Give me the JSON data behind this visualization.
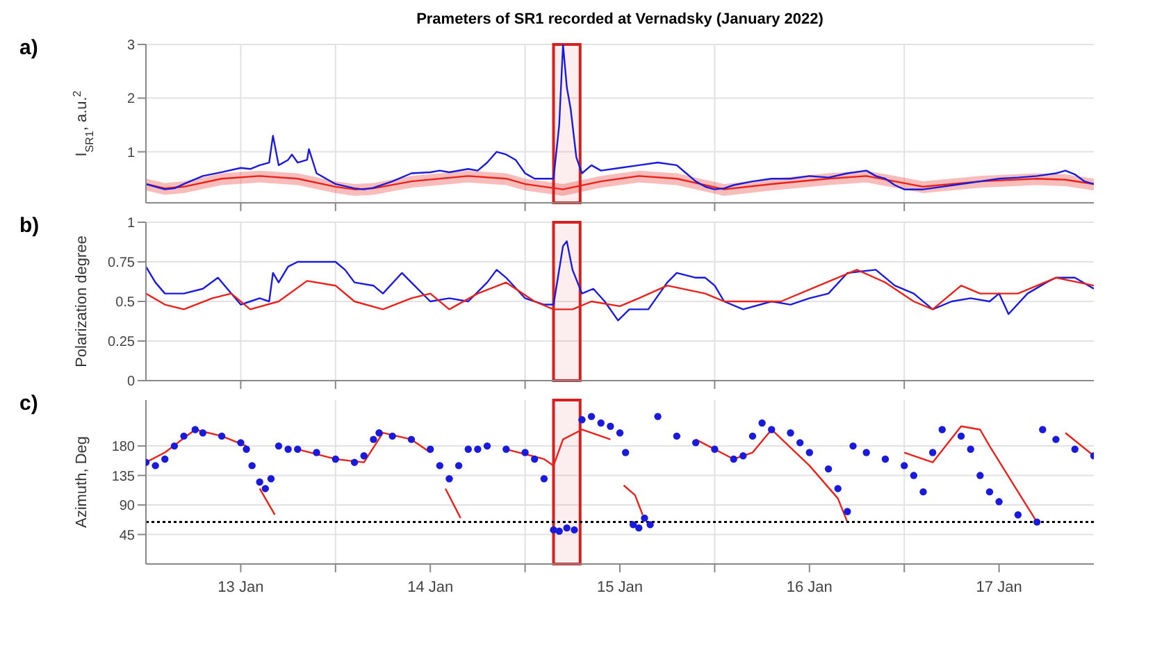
{
  "chart_data": [
    {
      "type": "line",
      "title": "Prameters of SR1 recorded at Vernadsky (January 2022)",
      "ylabel": "I$_{SR1}$, a.u.$^{2}$",
      "annotations": [
        "a)"
      ],
      "xlim": [
        "2022-01-13T00:00",
        "2022-01-18T00:00"
      ],
      "ylim": [
        0.05,
        3
      ],
      "yticks": [
        1,
        2,
        3
      ],
      "xticks": [
        {
          "value": "2022-01-13T12:00",
          "label": null
        },
        {
          "value": "2022-01-14T00:00",
          "label": null
        },
        {
          "value": "2022-01-15T00:00",
          "label": null
        },
        {
          "value": "2022-01-16T00:00",
          "label": null
        },
        {
          "value": "2022-01-17T00:00",
          "label": null
        }
      ],
      "tick_labels": "y",
      "grid": true,
      "marker": "none",
      "bands": [
        {
          "axis": "x",
          "from": "2022-01-15T03:36",
          "to": "2022-01-15T06:58",
          "color": "#d62020"
        }
      ],
      "series": [
        {
          "color": "#e8221b",
          "lower": [
            0.28,
            0.2,
            0.23,
            0.38,
            0.43,
            0.38,
            0.23,
            0.18,
            0.2,
            0.33,
            0.43,
            0.38,
            0.28,
            0.23,
            0.18,
            0.33,
            0.43,
            0.38,
            0.3,
            0.18,
            0.28,
            0.38,
            0.43,
            0.33,
            0.23,
            0.33,
            0.38,
            0.36,
            0.28
          ],
          "upper": [
            0.5,
            0.42,
            0.45,
            0.6,
            0.65,
            0.6,
            0.45,
            0.4,
            0.42,
            0.55,
            0.65,
            0.6,
            0.5,
            0.45,
            0.4,
            0.55,
            0.65,
            0.6,
            0.52,
            0.4,
            0.5,
            0.6,
            0.65,
            0.55,
            0.45,
            0.55,
            0.6,
            0.58,
            0.5
          ],
          "x": [
            "2022-01-13T00:00",
            "2022-01-13T02:24",
            "2022-01-13T04:48",
            "2022-01-13T09:36",
            "2022-01-13T14:24",
            "2022-01-13T19:12",
            "2022-01-14T00:00",
            "2022-01-14T02:24",
            "2022-01-14T04:48",
            "2022-01-14T09:36",
            "2022-01-14T16:48",
            "2022-01-14T21:36",
            "2022-01-15T00:00",
            "2022-01-15T02:24",
            "2022-01-15T04:48",
            "2022-01-15T09:36",
            "2022-01-15T14:24",
            "2022-01-15T19:12",
            "2022-01-15T21:36",
            "2022-01-16T01:12",
            "2022-01-16T07:12",
            "2022-01-16T14:24",
            "2022-01-16T19:12",
            "2022-01-16T22:48",
            "2022-01-17T02:24",
            "2022-01-17T09:36",
            "2022-01-17T16:48",
            "2022-01-17T20:24",
            "2022-01-18T00:00"
          ],
          "values": [
            0.4,
            0.32,
            0.35,
            0.5,
            0.55,
            0.5,
            0.35,
            0.3,
            0.32,
            0.45,
            0.55,
            0.5,
            0.4,
            0.35,
            0.3,
            0.45,
            0.55,
            0.5,
            0.42,
            0.3,
            0.4,
            0.5,
            0.55,
            0.45,
            0.35,
            0.45,
            0.5,
            0.48,
            0.4
          ]
        },
        {
          "color": "#1a1adb",
          "x": [
            "2022-01-13T00:00",
            "2022-01-13T01:12",
            "2022-01-13T02:24",
            "2022-01-13T03:36",
            "2022-01-13T04:48",
            "2022-01-13T07:12",
            "2022-01-13T09:36",
            "2022-01-13T12:00",
            "2022-01-13T13:12",
            "2022-01-13T14:24",
            "2022-01-13T15:36",
            "2022-01-13T16:05",
            "2022-01-13T16:48",
            "2022-01-13T18:00",
            "2022-01-13T18:29",
            "2022-01-13T19:12",
            "2022-01-13T20:24",
            "2022-01-13T20:38",
            "2022-01-13T21:36",
            "2022-01-13T22:48",
            "2022-01-14T00:00",
            "2022-01-14T02:24",
            "2022-01-14T03:36",
            "2022-01-14T04:48",
            "2022-01-14T07:12",
            "2022-01-14T09:36",
            "2022-01-14T12:00",
            "2022-01-14T13:12",
            "2022-01-14T14:24",
            "2022-01-14T16:48",
            "2022-01-14T18:00",
            "2022-01-14T19:12",
            "2022-01-14T20:24",
            "2022-01-14T21:36",
            "2022-01-14T22:48",
            "2022-01-15T00:00",
            "2022-01-15T01:12",
            "2022-01-15T02:24",
            "2022-01-15T03:36",
            "2022-01-15T04:19",
            "2022-01-15T04:48",
            "2022-01-15T05:17",
            "2022-01-15T05:46",
            "2022-01-15T06:29",
            "2022-01-15T07:12",
            "2022-01-15T08:24",
            "2022-01-15T09:36",
            "2022-01-15T12:00",
            "2022-01-15T14:24",
            "2022-01-15T16:48",
            "2022-01-15T19:12",
            "2022-01-15T20:24",
            "2022-01-15T21:36",
            "2022-01-15T22:48",
            "2022-01-16T00:00",
            "2022-01-16T01:12",
            "2022-01-16T02:24",
            "2022-01-16T04:48",
            "2022-01-16T07:12",
            "2022-01-16T09:36",
            "2022-01-16T12:00",
            "2022-01-16T14:24",
            "2022-01-16T16:48",
            "2022-01-16T19:12",
            "2022-01-16T20:24",
            "2022-01-16T21:36",
            "2022-01-16T22:48",
            "2022-01-17T00:00",
            "2022-01-17T02:24",
            "2022-01-17T04:48",
            "2022-01-17T07:12",
            "2022-01-17T09:36",
            "2022-01-17T12:00",
            "2022-01-17T14:24",
            "2022-01-17T16:48",
            "2022-01-17T19:12",
            "2022-01-17T20:24",
            "2022-01-17T21:36",
            "2022-01-17T22:48",
            "2022-01-18T00:00"
          ],
          "values": [
            0.4,
            0.35,
            0.3,
            0.32,
            0.4,
            0.55,
            0.62,
            0.7,
            0.68,
            0.75,
            0.8,
            1.3,
            0.75,
            0.85,
            0.95,
            0.8,
            0.85,
            1.05,
            0.6,
            0.5,
            0.4,
            0.32,
            0.3,
            0.33,
            0.45,
            0.6,
            0.62,
            0.65,
            0.62,
            0.68,
            0.65,
            0.8,
            1.0,
            0.95,
            0.85,
            0.6,
            0.5,
            0.5,
            0.5,
            1.5,
            3.0,
            2.2,
            1.8,
            0.9,
            0.6,
            0.75,
            0.65,
            0.7,
            0.75,
            0.8,
            0.75,
            0.6,
            0.45,
            0.35,
            0.3,
            0.32,
            0.38,
            0.45,
            0.5,
            0.5,
            0.55,
            0.52,
            0.6,
            0.65,
            0.55,
            0.5,
            0.38,
            0.3,
            0.3,
            0.35,
            0.4,
            0.45,
            0.5,
            0.52,
            0.55,
            0.6,
            0.65,
            0.58,
            0.45,
            0.4
          ]
        }
      ]
    },
    {
      "type": "line",
      "ylabel": "Polarization degree",
      "annotations": [
        "b)"
      ],
      "xlim": [
        "2022-01-13T00:00",
        "2022-01-18T00:00"
      ],
      "ylim": [
        0,
        1
      ],
      "yticks": [
        0,
        0.25,
        0.5,
        0.75,
        1
      ],
      "xticks": [
        {
          "value": "2022-01-13T12:00",
          "label": null
        },
        {
          "value": "2022-01-14T00:00",
          "label": null
        },
        {
          "value": "2022-01-15T00:00",
          "label": null
        },
        {
          "value": "2022-01-16T00:00",
          "label": null
        },
        {
          "value": "2022-01-17T00:00",
          "label": null
        }
      ],
      "tick_labels": "y",
      "grid": true,
      "marker": "none",
      "bands": [
        {
          "axis": "x",
          "from": "2022-01-15T03:36",
          "to": "2022-01-15T06:58",
          "color": "#d62020"
        }
      ],
      "series": [
        {
          "color": "#1a1adb",
          "x": [
            "2022-01-13T00:00",
            "2022-01-13T01:12",
            "2022-01-13T02:24",
            "2022-01-13T04:48",
            "2022-01-13T07:12",
            "2022-01-13T09:07",
            "2022-01-13T10:48",
            "2022-01-13T12:00",
            "2022-01-13T13:12",
            "2022-01-13T14:24",
            "2022-01-13T15:36",
            "2022-01-13T16:05",
            "2022-01-13T16:48",
            "2022-01-13T18:00",
            "2022-01-13T19:12",
            "2022-01-13T21:36",
            "2022-01-14T00:00",
            "2022-01-14T01:12",
            "2022-01-14T02:24",
            "2022-01-14T04:48",
            "2022-01-14T06:00",
            "2022-01-14T08:24",
            "2022-01-14T09:36",
            "2022-01-14T12:00",
            "2022-01-14T14:24",
            "2022-01-14T16:48",
            "2022-01-14T19:12",
            "2022-01-14T20:24",
            "2022-01-14T21:36",
            "2022-01-15T00:00",
            "2022-01-15T02:24",
            "2022-01-15T03:36",
            "2022-01-15T04:48",
            "2022-01-15T05:17",
            "2022-01-15T06:00",
            "2022-01-15T07:12",
            "2022-01-15T08:38",
            "2022-01-15T10:05",
            "2022-01-15T11:46",
            "2022-01-15T13:12",
            "2022-01-15T15:36",
            "2022-01-15T18:00",
            "2022-01-15T19:12",
            "2022-01-15T21:36",
            "2022-01-15T22:48",
            "2022-01-16T00:00",
            "2022-01-16T01:12",
            "2022-01-16T03:36",
            "2022-01-16T07:12",
            "2022-01-16T09:36",
            "2022-01-16T12:00",
            "2022-01-16T14:24",
            "2022-01-16T16:48",
            "2022-01-16T20:24",
            "2022-01-16T22:48",
            "2022-01-17T01:12",
            "2022-01-17T03:36",
            "2022-01-17T06:00",
            "2022-01-17T08:24",
            "2022-01-17T10:48",
            "2022-01-17T12:00",
            "2022-01-17T13:12",
            "2022-01-17T15:36",
            "2022-01-17T18:00",
            "2022-01-17T19:12",
            "2022-01-17T21:36",
            "2022-01-18T00:00"
          ],
          "values": [
            0.72,
            0.62,
            0.55,
            0.55,
            0.58,
            0.65,
            0.55,
            0.48,
            0.5,
            0.52,
            0.5,
            0.68,
            0.62,
            0.72,
            0.75,
            0.75,
            0.75,
            0.7,
            0.62,
            0.6,
            0.55,
            0.68,
            0.62,
            0.5,
            0.52,
            0.5,
            0.62,
            0.7,
            0.65,
            0.52,
            0.48,
            0.48,
            0.85,
            0.88,
            0.7,
            0.55,
            0.58,
            0.5,
            0.38,
            0.45,
            0.45,
            0.62,
            0.68,
            0.65,
            0.65,
            0.6,
            0.5,
            0.45,
            0.5,
            0.48,
            0.52,
            0.55,
            0.68,
            0.7,
            0.6,
            0.55,
            0.45,
            0.5,
            0.52,
            0.5,
            0.55,
            0.42,
            0.55,
            0.62,
            0.65,
            0.65,
            0.58
          ]
        },
        {
          "color": "#e8221b",
          "x": [
            "2022-01-13T00:00",
            "2022-01-13T02:24",
            "2022-01-13T04:48",
            "2022-01-13T08:24",
            "2022-01-13T10:48",
            "2022-01-13T13:12",
            "2022-01-13T16:48",
            "2022-01-13T20:24",
            "2022-01-14T00:00",
            "2022-01-14T02:24",
            "2022-01-14T06:00",
            "2022-01-14T09:36",
            "2022-01-14T12:00",
            "2022-01-14T14:24",
            "2022-01-14T18:00",
            "2022-01-14T21:36",
            "2022-01-15T01:12",
            "2022-01-15T03:36",
            "2022-01-15T06:00",
            "2022-01-15T08:24",
            "2022-01-15T12:00",
            "2022-01-15T14:24",
            "2022-01-15T18:00",
            "2022-01-15T22:48",
            "2022-01-16T01:12",
            "2022-01-16T08:24",
            "2022-01-16T13:12",
            "2022-01-16T18:00",
            "2022-01-16T21:36",
            "2022-01-17T01:12",
            "2022-01-17T03:36",
            "2022-01-17T07:12",
            "2022-01-17T09:36",
            "2022-01-17T14:24",
            "2022-01-17T19:12",
            "2022-01-18T00:00"
          ],
          "values": [
            0.55,
            0.48,
            0.45,
            0.52,
            0.55,
            0.45,
            0.5,
            0.63,
            0.6,
            0.5,
            0.45,
            0.52,
            0.55,
            0.45,
            0.55,
            0.62,
            0.5,
            0.45,
            0.45,
            0.5,
            0.47,
            0.52,
            0.6,
            0.55,
            0.5,
            0.5,
            0.6,
            0.7,
            0.62,
            0.5,
            0.45,
            0.6,
            0.55,
            0.55,
            0.65,
            0.6
          ]
        }
      ]
    },
    {
      "type": "scatter",
      "ylabel": "Azimuth, Deg",
      "annotations": [
        "c)"
      ],
      "xlim": [
        "2022-01-13T00:00",
        "2022-01-18T00:00"
      ],
      "ylim": [
        0,
        250
      ],
      "yticks": [
        45,
        90,
        135,
        180
      ],
      "xticks": [
        {
          "value": "2022-01-13T12:00",
          "label": "13 Jan"
        },
        {
          "value": "2022-01-14T00:00",
          "label": null
        },
        {
          "value": "2022-01-14T12:00",
          "label": "14 Jan"
        },
        {
          "value": "2022-01-15T00:00",
          "label": null
        },
        {
          "value": "2022-01-15T12:00",
          "label": "15 Jan"
        },
        {
          "value": "2022-01-16T00:00",
          "label": null
        },
        {
          "value": "2022-01-16T12:00",
          "label": "16 Jan"
        },
        {
          "value": "2022-01-17T00:00",
          "label": null
        },
        {
          "value": "2022-01-17T12:00",
          "label": "17 Jan"
        }
      ],
      "grid": true,
      "bands": [
        {
          "axis": "x",
          "from": "2022-01-15T03:36",
          "to": "2022-01-15T06:58",
          "color": "#d62020"
        }
      ],
      "ref_lines": [
        {
          "axis": "y",
          "value": 64,
          "color": "#000000",
          "line_style": "dotted"
        }
      ],
      "series": [
        {
          "marker": "circle",
          "color": "#1a1adb",
          "x": [
            "2022-01-13T00:00",
            "2022-01-13T01:12",
            "2022-01-13T02:24",
            "2022-01-13T03:36",
            "2022-01-13T04:48",
            "2022-01-13T06:14",
            "2022-01-13T07:12",
            "2022-01-13T09:36",
            "2022-01-13T12:00",
            "2022-01-13T12:43",
            "2022-01-13T13:26",
            "2022-01-13T14:24",
            "2022-01-13T15:07",
            "2022-01-13T15:50",
            "2022-01-13T16:48",
            "2022-01-13T18:00",
            "2022-01-13T19:12",
            "2022-01-13T21:36",
            "2022-01-14T00:00",
            "2022-01-14T02:24",
            "2022-01-14T03:36",
            "2022-01-14T04:48",
            "2022-01-14T05:31",
            "2022-01-14T07:12",
            "2022-01-14T09:36",
            "2022-01-14T12:00",
            "2022-01-14T13:12",
            "2022-01-14T14:24",
            "2022-01-14T15:36",
            "2022-01-14T16:48",
            "2022-01-14T18:00",
            "2022-01-14T19:12",
            "2022-01-14T21:36",
            "2022-01-15T00:00",
            "2022-01-15T01:12",
            "2022-01-15T02:24",
            "2022-01-15T03:36",
            "2022-01-15T04:19",
            "2022-01-15T05:17",
            "2022-01-15T06:14",
            "2022-01-15T07:12",
            "2022-01-15T08:24",
            "2022-01-15T09:36",
            "2022-01-15T10:48",
            "2022-01-15T12:00",
            "2022-01-15T12:43",
            "2022-01-15T13:41",
            "2022-01-15T14:24",
            "2022-01-15T15:07",
            "2022-01-15T15:50",
            "2022-01-15T16:48",
            "2022-01-15T19:12",
            "2022-01-15T21:36",
            "2022-01-16T00:00",
            "2022-01-16T02:24",
            "2022-01-16T03:36",
            "2022-01-16T04:48",
            "2022-01-16T06:00",
            "2022-01-16T07:12",
            "2022-01-16T09:36",
            "2022-01-16T10:48",
            "2022-01-16T12:00",
            "2022-01-16T14:24",
            "2022-01-16T15:36",
            "2022-01-16T16:48",
            "2022-01-16T17:31",
            "2022-01-16T19:12",
            "2022-01-16T21:36",
            "2022-01-17T00:00",
            "2022-01-17T01:12",
            "2022-01-17T02:24",
            "2022-01-17T03:36",
            "2022-01-17T04:48",
            "2022-01-17T07:12",
            "2022-01-17T08:24",
            "2022-01-17T09:36",
            "2022-01-17T10:48",
            "2022-01-17T12:00",
            "2022-01-17T14:24",
            "2022-01-17T16:48",
            "2022-01-17T17:31",
            "2022-01-17T19:12",
            "2022-01-17T21:36",
            "2022-01-18T00:00"
          ],
          "values": [
            155,
            150,
            160,
            180,
            195,
            205,
            200,
            195,
            185,
            175,
            150,
            125,
            115,
            130,
            180,
            175,
            175,
            170,
            160,
            155,
            165,
            190,
            200,
            195,
            190,
            175,
            150,
            130,
            150,
            175,
            175,
            180,
            175,
            170,
            160,
            130,
            52,
            50,
            55,
            52,
            220,
            225,
            215,
            210,
            200,
            170,
            60,
            55,
            70,
            60,
            225,
            195,
            185,
            175,
            160,
            165,
            195,
            215,
            205,
            200,
            185,
            170,
            145,
            115,
            80,
            180,
            170,
            160,
            150,
            135,
            110,
            170,
            205,
            195,
            175,
            135,
            110,
            95,
            75,
            64,
            205,
            190,
            175,
            165
          ]
        },
        {
          "type": "line",
          "marker": "none",
          "color": "#e8221b",
          "x": [
            "2022-01-13T00:00",
            "2022-01-13T02:24",
            "2022-01-13T06:14",
            "2022-01-13T09:36",
            "2022-01-13T12:43",
            "2022-01-13T13:12",
            "2022-01-13T14:24",
            "2022-01-13T16:19",
            "2022-01-13T17:17",
            "2022-01-13T19:12",
            "2022-01-14T00:00",
            "2022-01-14T03:36",
            "2022-01-14T06:00",
            "2022-01-14T09:36",
            "2022-01-14T12:00",
            "2022-01-14T12:29",
            "2022-01-14T13:55",
            "2022-01-14T15:50",
            "2022-01-14T16:48",
            "2022-01-14T21:36",
            "2022-01-15T02:24",
            "2022-01-15T03:36",
            "2022-01-15T04:48",
            "2022-01-15T07:12",
            "2022-01-15T10:48",
            "2022-01-15T12:00",
            "2022-01-15T12:29",
            "2022-01-15T13:55",
            "2022-01-15T14:53",
            "2022-01-15T15:50",
            "2022-01-15T21:36",
            "2022-01-16T02:24",
            "2022-01-16T04:48",
            "2022-01-16T07:12",
            "2022-01-16T12:00",
            "2022-01-16T15:36",
            "2022-01-16T16:48",
            "2022-01-16T17:31",
            "2022-01-17T00:00",
            "2022-01-17T03:36",
            "2022-01-17T07:12",
            "2022-01-17T09:36",
            "2022-01-17T10:48",
            "2022-01-17T14:24",
            "2022-01-17T16:48",
            "2022-01-17T17:17",
            "2022-01-17T20:24",
            "2022-01-18T00:00"
          ],
          "values": [
            155,
            170,
            205,
            195,
            180,
            null,
            115,
            75,
            null,
            175,
            160,
            155,
            200,
            190,
            170,
            null,
            115,
            70,
            null,
            175,
            160,
            150,
            190,
            205,
            190,
            null,
            120,
            105,
            75,
            null,
            190,
            160,
            170,
            205,
            150,
            100,
            64,
            null,
            170,
            155,
            210,
            205,
            180,
            110,
            64,
            null,
            200,
            165
          ]
        }
      ]
    }
  ]
}
